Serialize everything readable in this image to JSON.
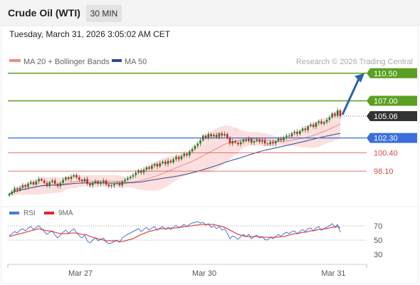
{
  "header": {
    "title": "Crude Oil (WTI)",
    "interval": "30 MIN",
    "timestamp": "Tuesday, March 31, 2026 3:05:02 AM CET"
  },
  "colors": {
    "ma20": "#f08a84",
    "band": "#fbd3d2",
    "ma50": "#2e4a8e",
    "resistance": "#5aa020",
    "pivot": "#3a6fdb",
    "support": "#d94a44",
    "up_candle": "#2a7a2a",
    "down_candle": "#c0282d",
    "arrow": "#2e62ad",
    "rsi": "#4a78d8",
    "rsi_ma": "#e0242a"
  },
  "chart_data": [
    {
      "type": "candlestick",
      "legend": [
        "MA 20 + Bollinger Bands",
        "MA 50"
      ],
      "credit": "Research © 2026 Trading Central",
      "x_ticks": [
        "Mar 27",
        "Mar 30",
        "Mar 31"
      ],
      "ylim": [
        93.6,
        111.2
      ],
      "levels": [
        {
          "label": "110.50",
          "value": 110.5,
          "role": "target"
        },
        {
          "label": "107.00",
          "value": 107.0,
          "role": "resistance"
        },
        {
          "label": "105.06",
          "value": 105.06,
          "role": "last"
        },
        {
          "label": "102.30",
          "value": 102.3,
          "role": "pivot"
        },
        {
          "label": "100.40",
          "value": 100.4,
          "role": "support"
        },
        {
          "label": "98.10",
          "value": 98.1,
          "role": "support"
        }
      ],
      "close": [
        95.2,
        95.5,
        95.9,
        95.7,
        96.0,
        96.3,
        96.1,
        96.5,
        96.7,
        96.4,
        96.8,
        97.1,
        96.9,
        96.6,
        96.3,
        96.7,
        96.9,
        96.5,
        96.2,
        96.6,
        97.0,
        97.3,
        97.1,
        97.4,
        97.6,
        97.3,
        97.0,
        96.8,
        97.1,
        96.5,
        96.3,
        96.6,
        96.8,
        96.5,
        96.7,
        96.9,
        96.4,
        96.2,
        96.3,
        96.5,
        96.6,
        96.3,
        96.8,
        97.0,
        97.2,
        97.4,
        97.6,
        97.9,
        98.2,
        97.9,
        98.3,
        98.6,
        98.4,
        98.8,
        99.0,
        98.7,
        99.1,
        99.3,
        99.0,
        99.4,
        99.2,
        99.6,
        99.9,
        99.6,
        100.0,
        100.3,
        100.1,
        100.6,
        100.9,
        101.3,
        101.6,
        102.0,
        102.6,
        102.3,
        102.8,
        102.5,
        102.7,
        102.4,
        102.9,
        102.6,
        102.8,
        102.3,
        101.6,
        101.9,
        101.7,
        101.5,
        101.8,
        102.1,
        101.9,
        102.2,
        101.7,
        101.9,
        102.1,
        101.8,
        102.0,
        101.6,
        101.5,
        101.8,
        101.6,
        101.9,
        102.2,
        102.0,
        102.4,
        102.6,
        102.5,
        102.9,
        103.1,
        102.8,
        103.2,
        103.5,
        103.3,
        103.8,
        104.0,
        103.7,
        104.2,
        104.4,
        104.1,
        104.3,
        104.6,
        104.9,
        105.4,
        105.1,
        105.8,
        105.06
      ],
      "rsi": {
        "series": [
          "RSI",
          "9MA"
        ],
        "ticks": [
          70,
          50,
          30
        ],
        "ylim": [
          20,
          85
        ],
        "rsi_values": [
          56,
          59,
          62,
          60,
          64,
          66,
          63,
          67,
          69,
          65,
          68,
          70,
          66,
          62,
          58,
          61,
          63,
          57,
          53,
          57,
          61,
          64,
          60,
          63,
          66,
          61,
          56,
          53,
          57,
          49,
          46,
          50,
          53,
          49,
          51,
          53,
          47,
          45,
          46,
          48,
          50,
          47,
          53,
          56,
          58,
          60,
          62,
          64,
          66,
          62,
          65,
          68,
          64,
          67,
          69,
          64,
          67,
          69,
          65,
          68,
          65,
          68,
          71,
          67,
          70,
          72,
          69,
          72,
          74,
          75,
          76,
          74,
          75,
          71,
          73,
          68,
          70,
          66,
          69,
          64,
          66,
          60,
          52,
          56,
          54,
          51,
          55,
          58,
          55,
          58,
          52,
          55,
          57,
          53,
          55,
          51,
          50,
          54,
          52,
          55,
          58,
          55,
          59,
          61,
          59,
          62,
          63,
          59,
          62,
          65,
          62,
          66,
          67,
          63,
          67,
          69,
          64,
          66,
          68,
          70,
          73,
          68,
          72,
          61
        ],
        "ma_values": [
          55,
          56,
          57,
          58,
          59,
          60,
          61,
          62,
          63,
          64,
          65,
          66,
          65,
          64,
          63,
          63,
          62,
          61,
          60,
          59,
          59,
          59,
          59,
          60,
          60,
          60,
          59,
          58,
          58,
          57,
          55,
          54,
          53,
          52,
          51,
          50,
          49,
          49,
          49,
          49,
          49,
          48,
          48,
          49,
          50,
          51,
          52,
          54,
          56,
          58,
          59,
          61,
          62,
          63,
          64,
          65,
          66,
          66,
          66,
          66,
          67,
          67,
          67,
          68,
          68,
          69,
          69,
          70,
          70,
          71,
          71,
          72,
          72,
          72,
          72,
          72,
          72,
          71,
          70,
          69,
          68,
          66,
          64,
          62,
          60,
          58,
          57,
          56,
          55,
          55,
          55,
          55,
          55,
          55,
          54,
          54,
          54,
          54,
          54,
          54,
          54,
          55,
          55,
          56,
          57,
          58,
          59,
          59,
          60,
          61,
          61,
          62,
          63,
          63,
          64,
          65,
          65,
          66,
          66,
          67,
          68,
          68,
          69,
          67
        ]
      }
    }
  ]
}
